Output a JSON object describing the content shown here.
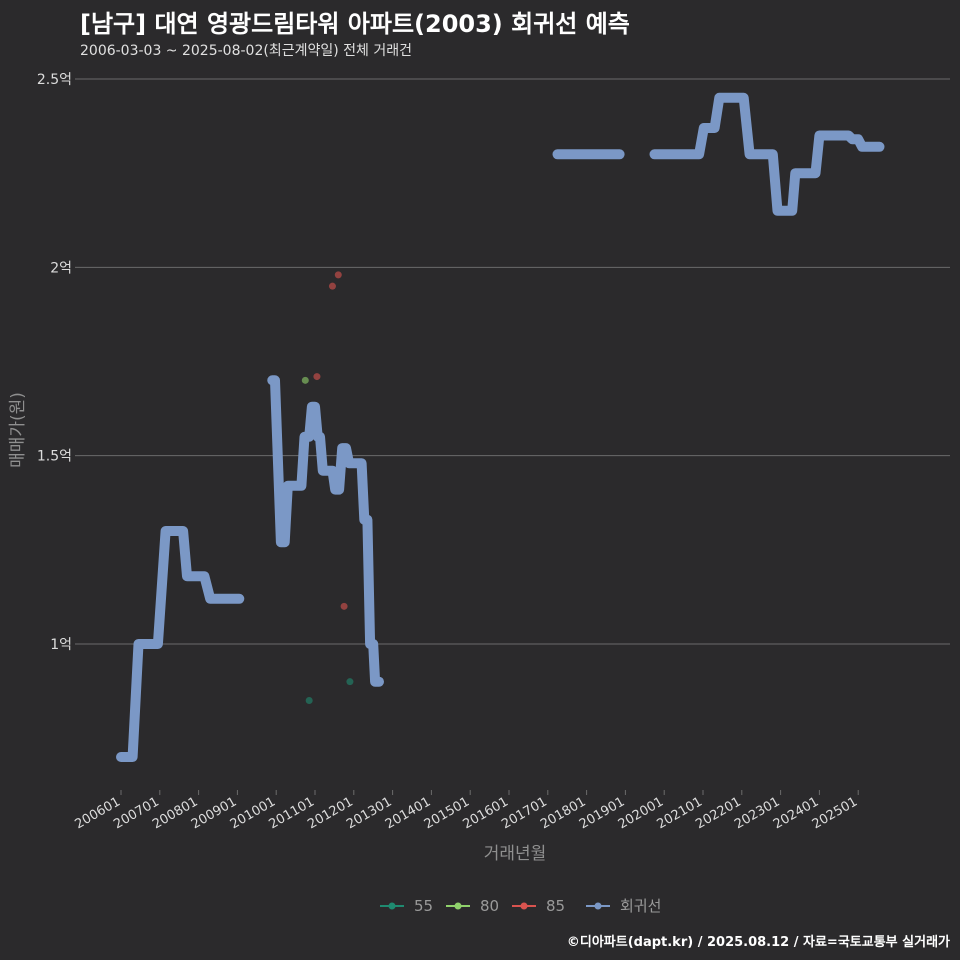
{
  "header": {
    "title": "[남구] 대연 영광드림타워 아파트(2003) 회귀선 예측",
    "subtitle": "2006-03-03 ~ 2025-08-02(최근계약일) 전체 거래건"
  },
  "caption": "©디아파트(dapt.kr) / 2025.08.12 / 자료=국토교통부 실거래가",
  "colors": {
    "background": "#2b2a2c",
    "grid": "#6b6b6b",
    "regression": "#7b98c6",
    "s55": "#1f8a70",
    "s80": "#8fd16b",
    "s85": "#d9534f"
  },
  "chart_data": {
    "type": "line",
    "xlabel": "거래년월",
    "ylabel": "매매가(원)",
    "x_range": [
      2006.0,
      2025.583
    ],
    "ylim": [
      0.6,
      2.6
    ],
    "y_ticks": [
      {
        "value": 1.0,
        "label": "1억"
      },
      {
        "value": 1.5,
        "label": "1.5억"
      },
      {
        "value": 2.0,
        "label": "2억"
      },
      {
        "value": 2.5,
        "label": "2.5억"
      }
    ],
    "x_ticks": [
      "200601",
      "200701",
      "200801",
      "200901",
      "201001",
      "201101",
      "201201",
      "201301",
      "201401",
      "201501",
      "201601",
      "201701",
      "201801",
      "201901",
      "202001",
      "202101",
      "202201",
      "202301",
      "202401",
      "202501"
    ],
    "grid": "horizontal",
    "legend": {
      "position": "bottom",
      "items": [
        {
          "name": "55",
          "color": "#1f8a70"
        },
        {
          "name": "80",
          "color": "#8fd16b"
        },
        {
          "name": "85",
          "color": "#d9534f"
        },
        {
          "name": "회귀선",
          "color": "#7b98c6"
        }
      ]
    },
    "series": [
      {
        "name": "회귀선",
        "kind": "line",
        "color": "#7b98c6",
        "segments": [
          [
            [
              2006.0,
              0.7
            ],
            [
              2006.3,
              0.7
            ],
            [
              2006.45,
              1.0
            ],
            [
              2006.95,
              1.0
            ],
            [
              2007.15,
              1.3
            ],
            [
              2007.6,
              1.3
            ],
            [
              2007.7,
              1.18
            ],
            [
              2008.15,
              1.18
            ],
            [
              2008.3,
              1.12
            ],
            [
              2009.05,
              1.12
            ]
          ],
          [
            [
              2009.9,
              1.7
            ],
            [
              2009.97,
              1.7
            ],
            [
              2010.12,
              1.27
            ],
            [
              2010.22,
              1.27
            ],
            [
              2010.3,
              1.42
            ],
            [
              2010.65,
              1.42
            ],
            [
              2010.73,
              1.55
            ],
            [
              2010.85,
              1.55
            ],
            [
              2010.92,
              1.63
            ],
            [
              2011.0,
              1.63
            ],
            [
              2011.07,
              1.55
            ],
            [
              2011.13,
              1.55
            ],
            [
              2011.2,
              1.46
            ],
            [
              2011.45,
              1.46
            ],
            [
              2011.52,
              1.41
            ],
            [
              2011.62,
              1.41
            ],
            [
              2011.7,
              1.52
            ],
            [
              2011.8,
              1.52
            ],
            [
              2011.88,
              1.48
            ],
            [
              2012.2,
              1.48
            ],
            [
              2012.27,
              1.33
            ],
            [
              2012.35,
              1.33
            ],
            [
              2012.42,
              1.0
            ],
            [
              2012.5,
              1.0
            ],
            [
              2012.55,
              0.9
            ],
            [
              2012.65,
              0.9
            ]
          ]
        ]
      },
      {
        "name": "회귀선",
        "kind": "line",
        "color": "#7b98c6",
        "segments": [
          [
            [
              2017.25,
              2.3
            ],
            [
              2018.85,
              2.3
            ]
          ],
          [
            [
              2019.75,
              2.3
            ],
            [
              2020.9,
              2.3
            ],
            [
              2021.02,
              2.37
            ],
            [
              2021.3,
              2.37
            ],
            [
              2021.42,
              2.45
            ],
            [
              2022.05,
              2.45
            ],
            [
              2022.2,
              2.3
            ],
            [
              2022.8,
              2.3
            ],
            [
              2022.92,
              2.15
            ],
            [
              2023.3,
              2.15
            ],
            [
              2023.38,
              2.25
            ],
            [
              2023.9,
              2.25
            ],
            [
              2024.0,
              2.35
            ],
            [
              2024.75,
              2.35
            ],
            [
              2024.85,
              2.34
            ],
            [
              2025.0,
              2.34
            ],
            [
              2025.1,
              2.32
            ],
            [
              2025.55,
              2.32
            ]
          ]
        ]
      }
    ],
    "points": [
      {
        "series": "55",
        "x": 2010.85,
        "y": 0.85
      },
      {
        "series": "55",
        "x": 2011.9,
        "y": 0.9
      },
      {
        "series": "80",
        "x": 2010.75,
        "y": 1.7
      },
      {
        "series": "85",
        "x": 2011.05,
        "y": 1.71
      },
      {
        "series": "85",
        "x": 2011.45,
        "y": 1.95
      },
      {
        "series": "85",
        "x": 2011.6,
        "y": 1.98
      },
      {
        "series": "85",
        "x": 2011.75,
        "y": 1.1
      }
    ]
  }
}
